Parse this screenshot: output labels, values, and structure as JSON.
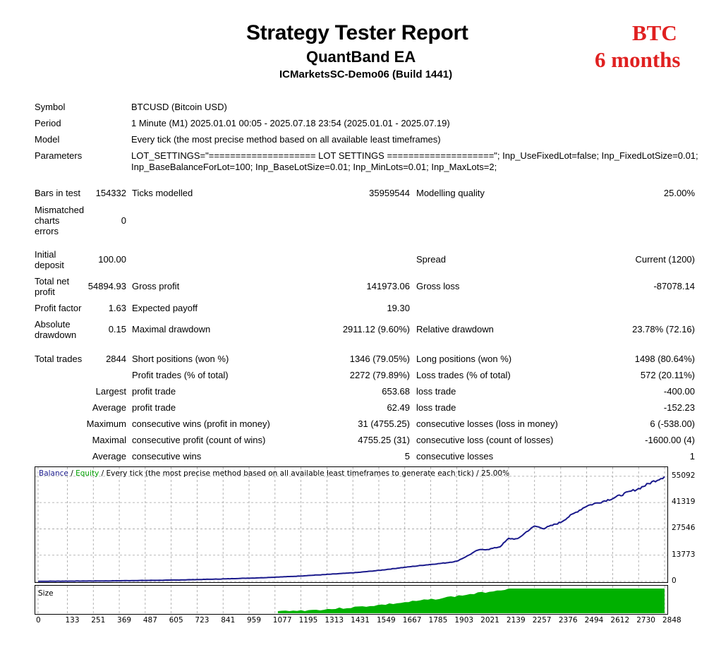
{
  "header": {
    "title": "Strategy Tester Report",
    "ea_name": "QuantBand EA",
    "server": "ICMarketsSC-Demo06 (Build 1441)"
  },
  "tag": {
    "line1": "BTC",
    "line2": "6 months",
    "color": "#e02020"
  },
  "info": {
    "symbol_label": "Symbol",
    "symbol_value": "BTCUSD (Bitcoin USD)",
    "period_label": "Period",
    "period_value": "1 Minute (M1) 2025.01.01 00:05 - 2025.07.18 23:54 (2025.01.01 - 2025.07.19)",
    "model_label": "Model",
    "model_value": "Every tick (the most precise method based on all available least timeframes)",
    "parameters_label": "Parameters",
    "parameters_line1": "LOT_SETTINGS=\"==================== LOT SETTINGS ====================\"; Inp_UseFixedLot=false; Inp_FixedLotSize=0.01;",
    "parameters_line2": "Inp_BaseBalanceForLot=100; Inp_BaseLotSize=0.01; Inp_MinLots=0.01; Inp_MaxLots=2;"
  },
  "stats": {
    "bars_label": "Bars in test",
    "bars_value": "154332",
    "ticks_label": "Ticks modelled",
    "ticks_value": "35959544",
    "quality_label": "Modelling quality",
    "quality_value": "25.00%",
    "mismatch_l1": "Mismatched",
    "mismatch_l2": "charts",
    "mismatch_l3": "errors",
    "mismatch_value": "0",
    "deposit_l1": "Initial",
    "deposit_l2": "deposit",
    "deposit_value": "100.00",
    "spread_label": "Spread",
    "spread_value": "Current (1200)",
    "netprofit_l1": "Total net",
    "netprofit_l2": "profit",
    "netprofit_value": "54894.93",
    "gross_profit_label": "Gross profit",
    "gross_profit_value": "141973.06",
    "gross_loss_label": "Gross loss",
    "gross_loss_value": "-87078.14",
    "pf_label": "Profit factor",
    "pf_value": "1.63",
    "payoff_label": "Expected payoff",
    "payoff_value": "19.30",
    "absdd_l1": "Absolute",
    "absdd_l2": "drawdown",
    "absdd_value": "0.15",
    "maxdd_label": "Maximal drawdown",
    "maxdd_value": "2911.12 (9.60%)",
    "reldd_label": "Relative drawdown",
    "reldd_value": "23.78% (72.16)",
    "trades_label": "Total trades",
    "trades_value": "2844",
    "short_label": "Short positions (won %)",
    "short_value": "1346 (79.05%)",
    "long_label": "Long positions (won %)",
    "long_value": "1498 (80.64%)",
    "ptrades_label": "Profit trades (% of total)",
    "ptrades_value": "2272 (79.89%)",
    "ltrades_label": "Loss trades (% of total)",
    "ltrades_value": "572 (20.11%)",
    "largest_label": "Largest",
    "lg_profit_label": "profit trade",
    "lg_profit_value": "653.68",
    "lg_loss_label": "loss trade",
    "lg_loss_value": "-400.00",
    "average_label": "Average",
    "avg_profit_label": "profit trade",
    "avg_profit_value": "62.49",
    "avg_loss_label": "loss trade",
    "avg_loss_value": "-152.23",
    "maximum_label": "Maximum",
    "max_cw_label": "consecutive wins (profit in money)",
    "max_cw_value": "31 (4755.25)",
    "max_cl_label": "consecutive losses (loss in money)",
    "max_cl_value": "6 (-538.00)",
    "maximal_label": "Maximal",
    "mx_cp_label": "consecutive profit (count of wins)",
    "mx_cp_value": "4755.25 (31)",
    "mx_cl_label": "consecutive loss (count of losses)",
    "mx_cl_value": "-1600.00 (4)",
    "average2_label": "Average",
    "avg_cw_label": "consecutive wins",
    "avg_cw_value": "5",
    "avg_cl_label": "consecutive losses",
    "avg_cl_value": "1"
  },
  "chart_data": {
    "type": "line",
    "legend": {
      "balance": "Balance",
      "sep1": " / ",
      "equity": "Equity",
      "rest": " / Every tick (the most precise method based on all available least timeframes to generate each tick) / 25.00%"
    },
    "colors": {
      "balance": "#1a1a8c",
      "equity": "#00a000",
      "size_fill": "#00b000",
      "grid": "#a0a0a0"
    },
    "y_ticks": [
      0,
      13773,
      27546,
      41319,
      55092
    ],
    "ylim": [
      0,
      58000
    ],
    "x_ticks": [
      0,
      133,
      251,
      369,
      487,
      605,
      723,
      841,
      959,
      1077,
      1195,
      1313,
      1431,
      1549,
      1667,
      1785,
      1903,
      2021,
      2139,
      2257,
      2376,
      2494,
      2612,
      2730,
      2848
    ],
    "xlim": [
      0,
      2848
    ],
    "series": [
      {
        "name": "Balance",
        "x": [
          0,
          300,
          600,
          800,
          1000,
          1150,
          1300,
          1450,
          1550,
          1650,
          1750,
          1850,
          1903,
          1950,
          2000,
          2050,
          2100,
          2139,
          2180,
          2220,
          2257,
          2300,
          2376,
          2420,
          2494,
          2560,
          2612,
          2680,
          2730,
          2790,
          2848
        ],
        "y": [
          100,
          300,
          700,
          1200,
          1900,
          2600,
          3600,
          4700,
          5800,
          7200,
          8500,
          9700,
          10600,
          13300,
          16500,
          16900,
          18200,
          22500,
          22200,
          26000,
          29000,
          27800,
          31000,
          34500,
          39600,
          41700,
          43500,
          46600,
          48600,
          52000,
          54900
        ]
      }
    ],
    "size_panel": {
      "label": "Size",
      "start": 1090,
      "plateau_start": 2139,
      "end": 2848
    }
  }
}
